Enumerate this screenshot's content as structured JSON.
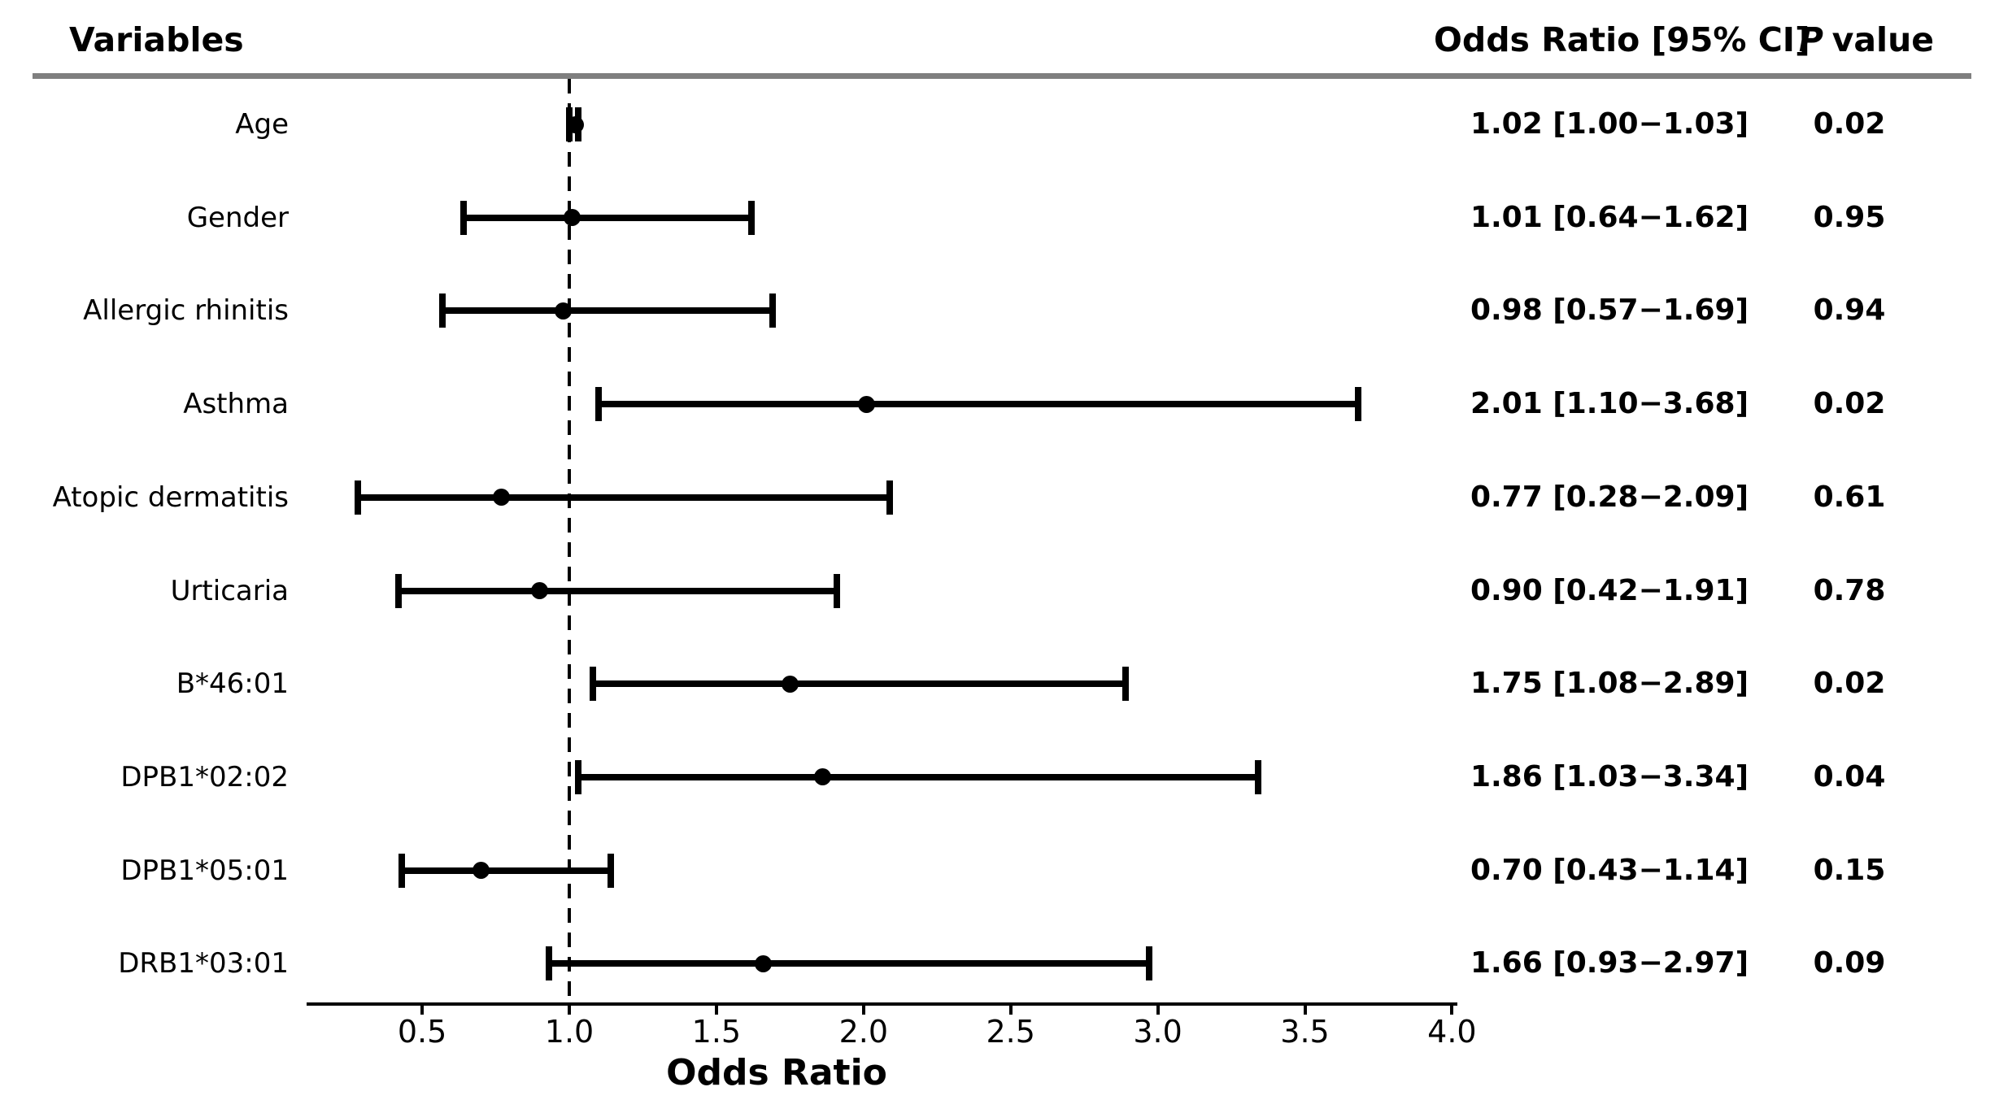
{
  "figure_type": "forest plot",
  "header": {
    "variables_label": "Variables",
    "or_ci_label": "Odds Ratio [95% CI]",
    "p_value_label_italic": "P",
    "p_value_label_rest": "value"
  },
  "chart_data": {
    "type": "scatter",
    "variant": "forest-plot",
    "title": "",
    "xlabel": "Odds Ratio",
    "ylabel": "",
    "xlim": [
      0.11,
      4.02
    ],
    "xtick_labels": [
      "0.5",
      "1.0",
      "1.5",
      "2.0",
      "2.5",
      "3.0",
      "3.5",
      "4.0"
    ],
    "reference_line_x": 1.0,
    "reference_line_style": "dashed",
    "grid": false,
    "rows": [
      {
        "label": "Age",
        "or": 1.02,
        "ci_low": 1.0,
        "ci_high": 1.03,
        "or_ci_text": "1.02 [1.00−1.03]",
        "p_value": "0.02"
      },
      {
        "label": "Gender",
        "or": 1.01,
        "ci_low": 0.64,
        "ci_high": 1.62,
        "or_ci_text": "1.01 [0.64−1.62]",
        "p_value": "0.95"
      },
      {
        "label": "Allergic rhinitis",
        "or": 0.98,
        "ci_low": 0.57,
        "ci_high": 1.69,
        "or_ci_text": "0.98 [0.57−1.69]",
        "p_value": "0.94"
      },
      {
        "label": "Asthma",
        "or": 2.01,
        "ci_low": 1.1,
        "ci_high": 3.68,
        "or_ci_text": "2.01 [1.10−3.68]",
        "p_value": "0.02"
      },
      {
        "label": "Atopic dermatitis",
        "or": 0.77,
        "ci_low": 0.28,
        "ci_high": 2.09,
        "or_ci_text": "0.77 [0.28−2.09]",
        "p_value": "0.61"
      },
      {
        "label": "Urticaria",
        "or": 0.9,
        "ci_low": 0.42,
        "ci_high": 1.91,
        "or_ci_text": "0.90 [0.42−1.91]",
        "p_value": "0.78"
      },
      {
        "label": "B*46:01",
        "or": 1.75,
        "ci_low": 1.08,
        "ci_high": 2.89,
        "or_ci_text": "1.75 [1.08−2.89]",
        "p_value": "0.02"
      },
      {
        "label": "DPB1*02:02",
        "or": 1.86,
        "ci_low": 1.03,
        "ci_high": 3.34,
        "or_ci_text": "1.86 [1.03−3.34]",
        "p_value": "0.04"
      },
      {
        "label": "DPB1*05:01",
        "or": 0.7,
        "ci_low": 0.43,
        "ci_high": 1.14,
        "or_ci_text": "0.70 [0.43−1.14]",
        "p_value": "0.15"
      },
      {
        "label": "DRB1*03:01",
        "or": 1.66,
        "ci_low": 0.93,
        "ci_high": 2.97,
        "or_ci_text": "1.66 [0.93−2.97]",
        "p_value": "0.09"
      }
    ],
    "colors": {
      "marker": "#000000",
      "separator": "#7f7f7f",
      "background": "#ffffff"
    },
    "legend": null
  }
}
